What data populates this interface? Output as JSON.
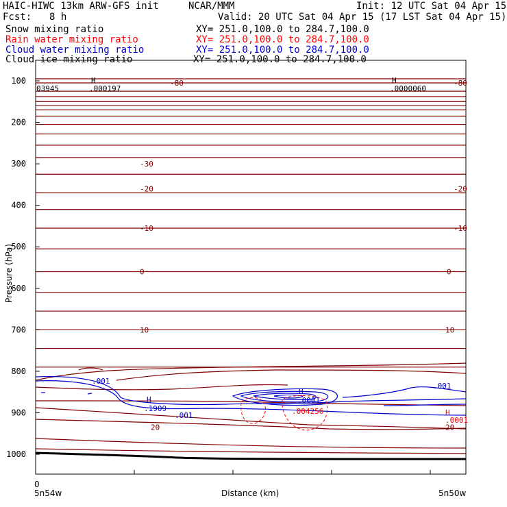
{
  "header": {
    "model": "HAIC-HIWC 13km ARW-GFS init",
    "org": "NCAR/MMM",
    "init": "Init: 12 UTC Sat 04 Apr 15",
    "fcst_label": "Fcst:",
    "fcst_value": "8 h",
    "valid": "Valid: 20 UTC Sat 04 Apr 15 (17 LST Sat 04 Apr 15)"
  },
  "legend": [
    {
      "label": "Snow mixing ratio",
      "xy": "XY= 251.0,100.0 to 284.7,100.0",
      "color": "#000000"
    },
    {
      "label": "Rain water mixing ratio",
      "xy": "XY= 251.0,100.0 to 284.7,100.0",
      "color": "#ff0000"
    },
    {
      "label": "Cloud water mixing ratio",
      "xy": "XY= 251.0,100.0 to 284.7,100.0",
      "color": "#0000cc"
    },
    {
      "label": "Cloud ice mixing ratio",
      "xy": "XY= 251.0,100.0 to 284.7,100.0",
      "color": "#000000"
    }
  ],
  "chart_data": {
    "type": "contour",
    "ylabel": "Pressure (hPa)",
    "xlabel": "Distance (km)",
    "ylim": [
      1050,
      70
    ],
    "yticks": [
      100,
      200,
      300,
      400,
      500,
      600,
      700,
      800,
      900,
      1000
    ],
    "xtick_labels": {
      "left": "0",
      "left_loc": "5n54w",
      "right_loc": "5n50w"
    },
    "colors": {
      "temperature": "#800000",
      "rain": "#ff0000",
      "cloud_water": "#0000cc",
      "terrain": "#000000"
    },
    "temperature_isotherms": [
      {
        "label": "-80",
        "pressure": 105
      },
      {
        "label": "-30",
        "pressure": 300
      },
      {
        "label": "-20",
        "pressure": 360
      },
      {
        "label": "-10",
        "pressure": 455
      },
      {
        "label": "0",
        "pressure": 560
      },
      {
        "label": "10",
        "pressure": 700
      },
      {
        "label": "20",
        "pressure": 935
      }
    ],
    "cloud_water_labels": [
      ".001",
      ".1909",
      ".001",
      ".0001",
      ".001"
    ],
    "rain_labels": [
      ".004256",
      ".0001"
    ],
    "max_markers": [
      {
        "symbol": "H",
        "value": ".000197"
      },
      {
        "symbol": "H",
        "value": ".0000060"
      },
      {
        "symbol": "H",
        "value": ".1909"
      },
      {
        "symbol": "H",
        "value": ".0001"
      }
    ],
    "snow_partial_label": "03945"
  }
}
